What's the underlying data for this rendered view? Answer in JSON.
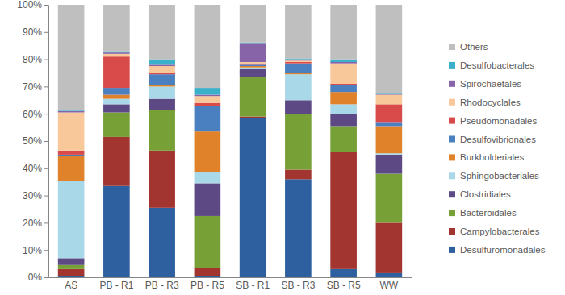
{
  "chart_data": {
    "type": "bar",
    "stacked": true,
    "grid": false,
    "legend": "right",
    "categories": [
      "AS",
      "PB - R1",
      "PB - R3",
      "PB - R5",
      "SB - R1",
      "SB - R3",
      "SB - R5",
      "WW"
    ],
    "ylim": [
      0,
      100
    ],
    "yticks": [
      {
        "value": 0,
        "label": "0%"
      },
      {
        "value": 10,
        "label": "10%"
      },
      {
        "value": 20,
        "label": "20%"
      },
      {
        "value": 30,
        "label": "30%"
      },
      {
        "value": 40,
        "label": "40%"
      },
      {
        "value": 50,
        "label": "50%"
      },
      {
        "value": 60,
        "label": "60%"
      },
      {
        "value": 70,
        "label": "70%"
      },
      {
        "value": 80,
        "label": "80%"
      },
      {
        "value": 90,
        "label": "90%"
      },
      {
        "value": 100,
        "label": "100%"
      }
    ],
    "series": [
      {
        "name": "Desulfuromonadales",
        "color": "#2e5f9e",
        "values": [
          0.5,
          33.5,
          25.5,
          0.5,
          58.5,
          36,
          3,
          1.5
        ]
      },
      {
        "name": "Campylobacterales",
        "color": "#a33530",
        "values": [
          2.5,
          18,
          21,
          3,
          0.5,
          3.5,
          43,
          18.5
        ]
      },
      {
        "name": "Bacteroidales",
        "color": "#77a037",
        "values": [
          1.5,
          9,
          15,
          19,
          14.5,
          20.5,
          9.5,
          18
        ]
      },
      {
        "name": "Clostridiales",
        "color": "#5d4a85",
        "values": [
          2.5,
          3,
          4,
          12,
          3,
          5,
          4.5,
          7
        ]
      },
      {
        "name": "Sphingobacteriales",
        "color": "#a9d8e8",
        "values": [
          28.5,
          2,
          4.5,
          4,
          0.5,
          9.5,
          3.5,
          0.5
        ]
      },
      {
        "name": "Burkholderiales",
        "color": "#e0822a",
        "values": [
          9,
          1.5,
          0.5,
          15,
          0.5,
          0.5,
          4.5,
          10
        ]
      },
      {
        "name": "Desulfovibrionales",
        "color": "#4a7fc0",
        "values": [
          0.5,
          2.5,
          4,
          9.5,
          0.5,
          3.5,
          2.5,
          1.5
        ]
      },
      {
        "name": "Pseudomonadales",
        "color": "#d94a4a",
        "values": [
          1.5,
          11.5,
          0.5,
          1,
          0.5,
          0.5,
          0.5,
          6.5
        ]
      },
      {
        "name": "Rhodocyclales",
        "color": "#f9c89a",
        "values": [
          14,
          1,
          2.5,
          2.5,
          0.5,
          0.5,
          7.5,
          3.5
        ]
      },
      {
        "name": "Spirochaetales",
        "color": "#8764a8",
        "values": [
          0.5,
          0.5,
          0.5,
          0.5,
          7,
          0.5,
          0.5,
          0.2
        ]
      },
      {
        "name": "Desulfobacterales",
        "color": "#3bb0c9",
        "values": [
          0.2,
          0.5,
          2,
          2.5,
          0.2,
          0.3,
          1,
          0.2
        ]
      },
      {
        "name": "Others",
        "color": "#bfbfbf",
        "values": [
          38.8,
          17,
          20,
          30.5,
          13.8,
          19.7,
          20,
          32.6
        ]
      }
    ]
  }
}
